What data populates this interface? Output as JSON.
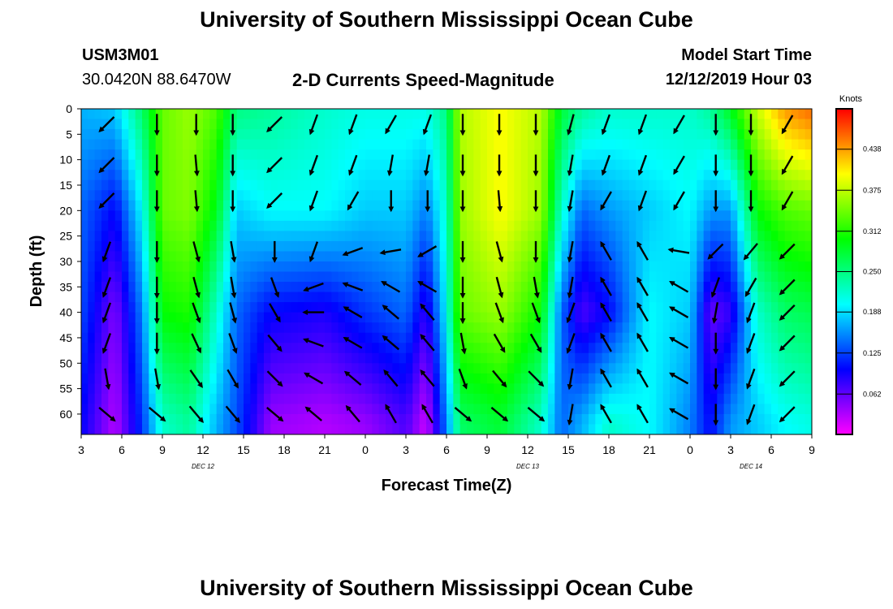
{
  "header": {
    "title": "University of Southern Mississippi Ocean Cube",
    "station_id": "USM3M01",
    "location": "30.0420N 88.6470W",
    "plot_title": "2-D Currents Speed-Magnitude",
    "model_start_label": "Model Start Time",
    "model_start_value": "12/12/2019 Hour 03"
  },
  "footer": {
    "title": "University of Southern Mississippi Ocean Cube"
  },
  "chart_data": {
    "type": "heatmap",
    "title": "2-D Currents Speed-Magnitude",
    "xlabel": "Forecast Time(Z)",
    "ylabel": "Depth (ft)",
    "x_tick_labels": [
      "3",
      "6",
      "9",
      "12",
      "15",
      "18",
      "21",
      "0",
      "3",
      "6",
      "9",
      "12",
      "15",
      "18",
      "21",
      "0",
      "3",
      "6",
      "9"
    ],
    "x_range_hours": [
      0,
      54
    ],
    "date_labels": [
      {
        "hour": 9,
        "text": "DEC 12"
      },
      {
        "hour": 33,
        "text": "DEC 13"
      },
      {
        "hour": 49.5,
        "text": "DEC 14"
      }
    ],
    "y_tick_labels": [
      "0",
      "5",
      "10",
      "15",
      "20",
      "25",
      "30",
      "35",
      "40",
      "45",
      "50",
      "55",
      "60"
    ],
    "y_range": [
      0,
      64
    ],
    "y_inverted": true,
    "colorbar": {
      "unit": "Knots",
      "range": [
        0,
        0.5
      ],
      "tick_values": [
        0.062,
        0.125,
        0.188,
        0.25,
        0.312,
        0.375,
        0.438
      ],
      "tick_labels": [
        "0.062",
        "0.125",
        "0.188",
        "0.250",
        "0.312",
        "0.375",
        "0.438"
      ]
    },
    "speed_keypoints_by_depth": {
      "depths": [
        0,
        20,
        40,
        62
      ],
      "rows": [
        {
          "hour": 0,
          "v": [
            0.17,
            0.14,
            0.13,
            0.1
          ]
        },
        {
          "hour": 2.5,
          "v": [
            0.18,
            0.1,
            0.05,
            0.03
          ]
        },
        {
          "hour": 4.5,
          "v": [
            0.26,
            0.2,
            0.15,
            0.12
          ]
        },
        {
          "hour": 6,
          "v": [
            0.34,
            0.34,
            0.3,
            0.22
          ]
        },
        {
          "hour": 8,
          "v": [
            0.36,
            0.35,
            0.31,
            0.24
          ]
        },
        {
          "hour": 10,
          "v": [
            0.33,
            0.29,
            0.22,
            0.17
          ]
        },
        {
          "hour": 11.5,
          "v": [
            0.25,
            0.18,
            0.14,
            0.13
          ]
        },
        {
          "hour": 14,
          "v": [
            0.24,
            0.2,
            0.1,
            0.04
          ]
        },
        {
          "hour": 18,
          "v": [
            0.22,
            0.2,
            0.09,
            0.03
          ]
        },
        {
          "hour": 21,
          "v": [
            0.21,
            0.18,
            0.12,
            0.04
          ]
        },
        {
          "hour": 24,
          "v": [
            0.21,
            0.18,
            0.14,
            0.07
          ]
        },
        {
          "hour": 25.5,
          "v": [
            0.21,
            0.15,
            0.08,
            0.02
          ]
        },
        {
          "hour": 27,
          "v": [
            0.25,
            0.22,
            0.2,
            0.15
          ]
        },
        {
          "hour": 28,
          "v": [
            0.37,
            0.36,
            0.34,
            0.26
          ]
        },
        {
          "hour": 31,
          "v": [
            0.4,
            0.4,
            0.36,
            0.28
          ]
        },
        {
          "hour": 34,
          "v": [
            0.37,
            0.36,
            0.3,
            0.22
          ]
        },
        {
          "hour": 35.5,
          "v": [
            0.28,
            0.22,
            0.14,
            0.14
          ]
        },
        {
          "hour": 37,
          "v": [
            0.24,
            0.14,
            0.07,
            0.17
          ]
        },
        {
          "hour": 39,
          "v": [
            0.22,
            0.16,
            0.1,
            0.22
          ]
        },
        {
          "hour": 42,
          "v": [
            0.22,
            0.18,
            0.2,
            0.2
          ]
        },
        {
          "hour": 45,
          "v": [
            0.22,
            0.2,
            0.18,
            0.15
          ]
        },
        {
          "hour": 46.5,
          "v": [
            0.24,
            0.16,
            0.06,
            0.1
          ]
        },
        {
          "hour": 48,
          "v": [
            0.29,
            0.16,
            0.08,
            0.16
          ]
        },
        {
          "hour": 50,
          "v": [
            0.38,
            0.3,
            0.22,
            0.18
          ]
        },
        {
          "hour": 52,
          "v": [
            0.44,
            0.33,
            0.26,
            0.2
          ]
        },
        {
          "hour": 54,
          "v": [
            0.46,
            0.34,
            0.27,
            0.21
          ]
        }
      ]
    },
    "vector_columns_hours": [
      1.9,
      5.6,
      8.5,
      11.2,
      14.3,
      17.2,
      20.1,
      22.9,
      25.6,
      28.2,
      30.9,
      33.6,
      36.2,
      38.8,
      41.5,
      44.2,
      46.9,
      49.5,
      52.2
    ],
    "vector_depths": [
      3,
      11,
      18,
      28,
      35,
      40,
      46,
      53,
      60
    ],
    "vector_directions_deg": [
      [
        225,
        180,
        180,
        180,
        225,
        200,
        200,
        210,
        200,
        180,
        180,
        180,
        195,
        200,
        200,
        210,
        180,
        180,
        210
      ],
      [
        225,
        180,
        175,
        180,
        225,
        200,
        200,
        190,
        190,
        180,
        180,
        180,
        190,
        200,
        200,
        210,
        180,
        180,
        210
      ],
      [
        225,
        180,
        175,
        180,
        225,
        200,
        210,
        180,
        180,
        180,
        175,
        180,
        190,
        210,
        200,
        210,
        180,
        180,
        210
      ],
      [
        200,
        180,
        165,
        170,
        180,
        200,
        250,
        260,
        240,
        180,
        165,
        180,
        190,
        330,
        330,
        280,
        225,
        220,
        225
      ],
      [
        200,
        180,
        165,
        170,
        160,
        250,
        290,
        300,
        300,
        180,
        165,
        170,
        190,
        330,
        330,
        300,
        200,
        210,
        225
      ],
      [
        200,
        180,
        160,
        165,
        150,
        270,
        300,
        310,
        320,
        180,
        160,
        160,
        200,
        330,
        330,
        300,
        190,
        200,
        225
      ],
      [
        200,
        180,
        155,
        160,
        140,
        290,
        300,
        310,
        320,
        170,
        150,
        150,
        200,
        330,
        330,
        300,
        180,
        200,
        225
      ],
      [
        170,
        170,
        145,
        150,
        135,
        300,
        310,
        320,
        320,
        160,
        140,
        135,
        190,
        330,
        330,
        300,
        180,
        200,
        225
      ],
      [
        130,
        130,
        140,
        140,
        130,
        310,
        320,
        330,
        330,
        130,
        130,
        130,
        190,
        330,
        330,
        300,
        180,
        200,
        225
      ]
    ]
  }
}
